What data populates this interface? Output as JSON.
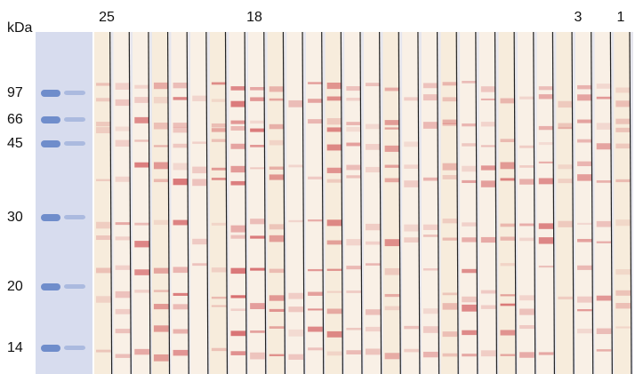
{
  "unit_label": "kDa",
  "marker_labels": [
    "97",
    "66",
    "45",
    "30",
    "20",
    "14"
  ],
  "lane_labels": [
    "25",
    "18",
    "3",
    "1"
  ]
}
